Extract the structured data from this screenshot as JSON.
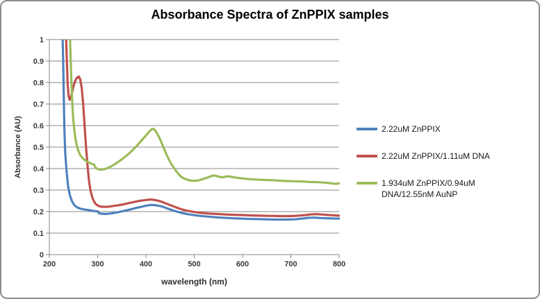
{
  "chart_data": {
    "type": "line",
    "title": "Absorbance Spectra of ZnPPIX samples",
    "xlabel": "wavelength (nm)",
    "ylabel": "Absorbance (AU)",
    "xlim": [
      200,
      800
    ],
    "ylim": [
      0,
      1
    ],
    "x_ticks": [
      200,
      300,
      400,
      500,
      600,
      700,
      800
    ],
    "y_ticks": [
      0,
      0.1,
      0.2,
      0.3,
      0.4,
      0.5,
      0.6,
      0.7,
      0.8,
      0.9,
      1
    ],
    "y_tick_labels": [
      "0",
      "0.1",
      "0.2",
      "0.3",
      "0.4",
      "0.5",
      "0.6",
      "0.7",
      "0.8",
      "0.9",
      "1"
    ],
    "grid": "horizontal",
    "legend_position": "right",
    "grid_color": "#878787",
    "axis_color": "#878787",
    "series": [
      {
        "name": "2.22uM ZnPPIX",
        "color": "#4F81BD",
        "points": [
          [
            200,
            1.06
          ],
          [
            227,
            1.06
          ],
          [
            229,
            0.85
          ],
          [
            231,
            0.6
          ],
          [
            233,
            0.47
          ],
          [
            236,
            0.38
          ],
          [
            239,
            0.315
          ],
          [
            243,
            0.272
          ],
          [
            247,
            0.247
          ],
          [
            252,
            0.23
          ],
          [
            258,
            0.219
          ],
          [
            265,
            0.213
          ],
          [
            272,
            0.21
          ],
          [
            281,
            0.207
          ],
          [
            290,
            0.204
          ],
          [
            298,
            0.201
          ],
          [
            301,
            0.201
          ],
          [
            303,
            0.192
          ],
          [
            308,
            0.19
          ],
          [
            315,
            0.189
          ],
          [
            323,
            0.19
          ],
          [
            332,
            0.193
          ],
          [
            342,
            0.197
          ],
          [
            354,
            0.203
          ],
          [
            366,
            0.209
          ],
          [
            378,
            0.216
          ],
          [
            390,
            0.222
          ],
          [
            400,
            0.227
          ],
          [
            408,
            0.23
          ],
          [
            414,
            0.231
          ],
          [
            421,
            0.229
          ],
          [
            429,
            0.226
          ],
          [
            437,
            0.221
          ],
          [
            445,
            0.214
          ],
          [
            454,
            0.207
          ],
          [
            464,
            0.2
          ],
          [
            474,
            0.194
          ],
          [
            484,
            0.189
          ],
          [
            495,
            0.185
          ],
          [
            508,
            0.181
          ],
          [
            522,
            0.178
          ],
          [
            538,
            0.175
          ],
          [
            555,
            0.172
          ],
          [
            572,
            0.17
          ],
          [
            590,
            0.168
          ],
          [
            610,
            0.166
          ],
          [
            630,
            0.165
          ],
          [
            650,
            0.164
          ],
          [
            670,
            0.163
          ],
          [
            690,
            0.163
          ],
          [
            708,
            0.164
          ],
          [
            722,
            0.167
          ],
          [
            736,
            0.171
          ],
          [
            748,
            0.172
          ],
          [
            762,
            0.17
          ],
          [
            776,
            0.169
          ],
          [
            800,
            0.167
          ]
        ]
      },
      {
        "name": "2.22uM ZnPPIX/1.11uM DNA",
        "color": "#C0504D",
        "points": [
          [
            200,
            1.06
          ],
          [
            234,
            1.06
          ],
          [
            236,
            0.92
          ],
          [
            238,
            0.79
          ],
          [
            240,
            0.735
          ],
          [
            242,
            0.72
          ],
          [
            245,
            0.735
          ],
          [
            249,
            0.775
          ],
          [
            253,
            0.805
          ],
          [
            257,
            0.822
          ],
          [
            261,
            0.828
          ],
          [
            264,
            0.815
          ],
          [
            267,
            0.775
          ],
          [
            270,
            0.7
          ],
          [
            273,
            0.6
          ],
          [
            276,
            0.5
          ],
          [
            279,
            0.415
          ],
          [
            282,
            0.345
          ],
          [
            285,
            0.3
          ],
          [
            289,
            0.265
          ],
          [
            293,
            0.245
          ],
          [
            297,
            0.233
          ],
          [
            302,
            0.226
          ],
          [
            308,
            0.223
          ],
          [
            315,
            0.222
          ],
          [
            323,
            0.223
          ],
          [
            332,
            0.226
          ],
          [
            342,
            0.229
          ],
          [
            354,
            0.234
          ],
          [
            366,
            0.24
          ],
          [
            378,
            0.246
          ],
          [
            390,
            0.251
          ],
          [
            400,
            0.254
          ],
          [
            408,
            0.256
          ],
          [
            415,
            0.255
          ],
          [
            423,
            0.252
          ],
          [
            431,
            0.247
          ],
          [
            439,
            0.24
          ],
          [
            448,
            0.232
          ],
          [
            458,
            0.224
          ],
          [
            468,
            0.215
          ],
          [
            478,
            0.208
          ],
          [
            488,
            0.203
          ],
          [
            500,
            0.198
          ],
          [
            514,
            0.194
          ],
          [
            530,
            0.191
          ],
          [
            546,
            0.189
          ],
          [
            562,
            0.187
          ],
          [
            580,
            0.185
          ],
          [
            600,
            0.184
          ],
          [
            620,
            0.182
          ],
          [
            640,
            0.181
          ],
          [
            660,
            0.18
          ],
          [
            680,
            0.179
          ],
          [
            700,
            0.179
          ],
          [
            716,
            0.181
          ],
          [
            730,
            0.184
          ],
          [
            742,
            0.187
          ],
          [
            754,
            0.188
          ],
          [
            766,
            0.186
          ],
          [
            780,
            0.184
          ],
          [
            800,
            0.181
          ]
        ]
      },
      {
        "name": "1.934uM ZnPPIX/0.94uM DNA/12.55nM AuNP",
        "color": "#9BBB59",
        "points": [
          [
            200,
            1.06
          ],
          [
            242,
            1.06
          ],
          [
            244,
            0.92
          ],
          [
            246,
            0.78
          ],
          [
            248,
            0.68
          ],
          [
            250,
            0.615
          ],
          [
            253,
            0.555
          ],
          [
            256,
            0.515
          ],
          [
            260,
            0.483
          ],
          [
            264,
            0.462
          ],
          [
            269,
            0.448
          ],
          [
            275,
            0.437
          ],
          [
            282,
            0.428
          ],
          [
            288,
            0.422
          ],
          [
            293,
            0.418
          ],
          [
            295,
            0.405
          ],
          [
            300,
            0.398
          ],
          [
            306,
            0.395
          ],
          [
            312,
            0.396
          ],
          [
            318,
            0.4
          ],
          [
            326,
            0.408
          ],
          [
            334,
            0.418
          ],
          [
            342,
            0.43
          ],
          [
            350,
            0.443
          ],
          [
            358,
            0.457
          ],
          [
            366,
            0.472
          ],
          [
            374,
            0.489
          ],
          [
            382,
            0.508
          ],
          [
            390,
            0.528
          ],
          [
            397,
            0.546
          ],
          [
            403,
            0.562
          ],
          [
            408,
            0.575
          ],
          [
            412,
            0.583
          ],
          [
            415,
            0.585
          ],
          [
            419,
            0.578
          ],
          [
            424,
            0.56
          ],
          [
            430,
            0.532
          ],
          [
            436,
            0.5
          ],
          [
            442,
            0.468
          ],
          [
            448,
            0.44
          ],
          [
            454,
            0.416
          ],
          [
            460,
            0.396
          ],
          [
            466,
            0.378
          ],
          [
            472,
            0.364
          ],
          [
            478,
            0.355
          ],
          [
            486,
            0.348
          ],
          [
            494,
            0.344
          ],
          [
            502,
            0.343
          ],
          [
            510,
            0.346
          ],
          [
            518,
            0.351
          ],
          [
            526,
            0.357
          ],
          [
            534,
            0.364
          ],
          [
            540,
            0.368
          ],
          [
            547,
            0.365
          ],
          [
            554,
            0.36
          ],
          [
            561,
            0.36
          ],
          [
            568,
            0.364
          ],
          [
            575,
            0.363
          ],
          [
            583,
            0.359
          ],
          [
            592,
            0.356
          ],
          [
            602,
            0.354
          ],
          [
            614,
            0.351
          ],
          [
            628,
            0.349
          ],
          [
            644,
            0.347
          ],
          [
            660,
            0.346
          ],
          [
            676,
            0.344
          ],
          [
            692,
            0.342
          ],
          [
            708,
            0.341
          ],
          [
            724,
            0.34
          ],
          [
            738,
            0.338
          ],
          [
            750,
            0.337
          ],
          [
            762,
            0.336
          ],
          [
            774,
            0.334
          ],
          [
            786,
            0.331
          ],
          [
            792,
            0.329
          ],
          [
            800,
            0.331
          ]
        ]
      }
    ]
  }
}
